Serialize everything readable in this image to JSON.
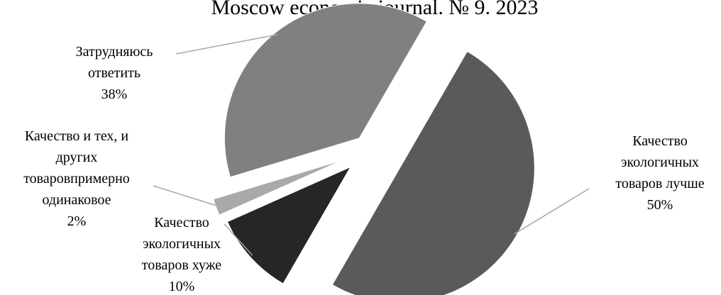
{
  "header": "Moscow economic journal. № 9. 2023",
  "chart_data": {
    "type": "pie",
    "title": "",
    "slices": [
      {
        "label_lines": [
          "Качество",
          "экологичных",
          "товаров лучше"
        ],
        "value": 50,
        "value_label": "50%",
        "color": "#5a5a5a"
      },
      {
        "label_lines": [
          "Качество",
          "экологичных",
          "товаров хуже"
        ],
        "value": 10,
        "value_label": "10%",
        "color": "#262626"
      },
      {
        "label_lines": [
          "Качество и тех, и",
          "других",
          "товаровпримерно",
          "одинаковое"
        ],
        "value": 2,
        "value_label": "2%",
        "color": "#a9a9a9"
      },
      {
        "label_lines": [
          "Затрудняюсь",
          "ответить"
        ],
        "value": 38,
        "value_label": "38%",
        "color": "#808080"
      }
    ]
  }
}
